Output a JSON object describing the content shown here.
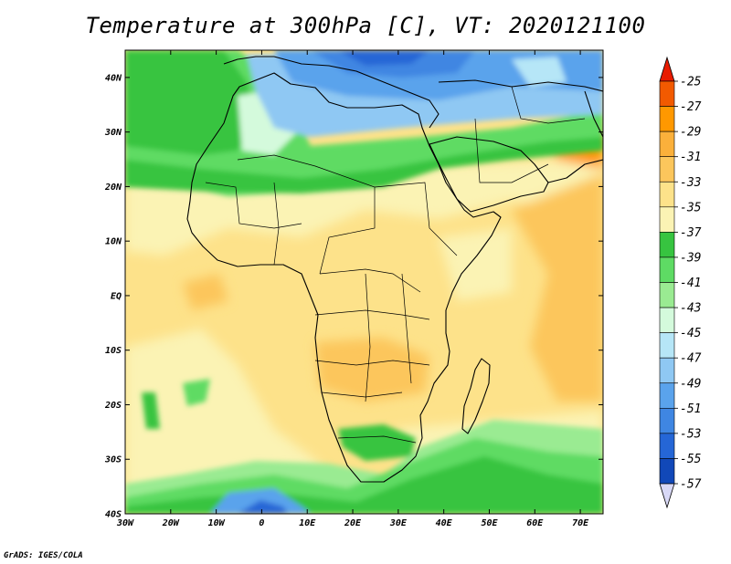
{
  "title": "Temperature at 300hPa [C], VT: 2020121100",
  "credit": "GrADS: IGES/COLA",
  "map": {
    "lon_range": [
      -30,
      75
    ],
    "lat_range": [
      -40,
      45
    ],
    "lon_ticks": [
      {
        "value": -30,
        "label": "30W"
      },
      {
        "value": -20,
        "label": "20W"
      },
      {
        "value": -10,
        "label": "10W"
      },
      {
        "value": 0,
        "label": "0"
      },
      {
        "value": 10,
        "label": "10E"
      },
      {
        "value": 20,
        "label": "20E"
      },
      {
        "value": 30,
        "label": "30E"
      },
      {
        "value": 40,
        "label": "40E"
      },
      {
        "value": 50,
        "label": "50E"
      },
      {
        "value": 60,
        "label": "60E"
      },
      {
        "value": 70,
        "label": "70E"
      }
    ],
    "lat_ticks": [
      {
        "value": 40,
        "label": "40N"
      },
      {
        "value": 30,
        "label": "30N"
      },
      {
        "value": 20,
        "label": "20N"
      },
      {
        "value": 10,
        "label": "10N"
      },
      {
        "value": 0,
        "label": "EQ"
      },
      {
        "value": -10,
        "label": "10S"
      },
      {
        "value": -20,
        "label": "20S"
      },
      {
        "value": -30,
        "label": "30S"
      },
      {
        "value": -40,
        "label": "40S"
      }
    ]
  },
  "colorbar": {
    "levels": [
      "-25",
      "-27",
      "-29",
      "-31",
      "-33",
      "-35",
      "-37",
      "-39",
      "-41",
      "-43",
      "-45",
      "-47",
      "-49",
      "-51",
      "-53",
      "-55",
      "-57"
    ],
    "colors": [
      "#f25a00",
      "#ff9800",
      "#fbb03b",
      "#fcc65c",
      "#fde28a",
      "#fbf3b4",
      "#37c440",
      "#5edb64",
      "#9aeb92",
      "#d4fadc",
      "#b6e6f7",
      "#8fc8f3",
      "#5aa3ec",
      "#3f86e2",
      "#2566d6",
      "#1148b8",
      "#0a2a8c"
    ],
    "top_color": "#e81b00",
    "bottom_color": "#d8d8f6"
  }
}
